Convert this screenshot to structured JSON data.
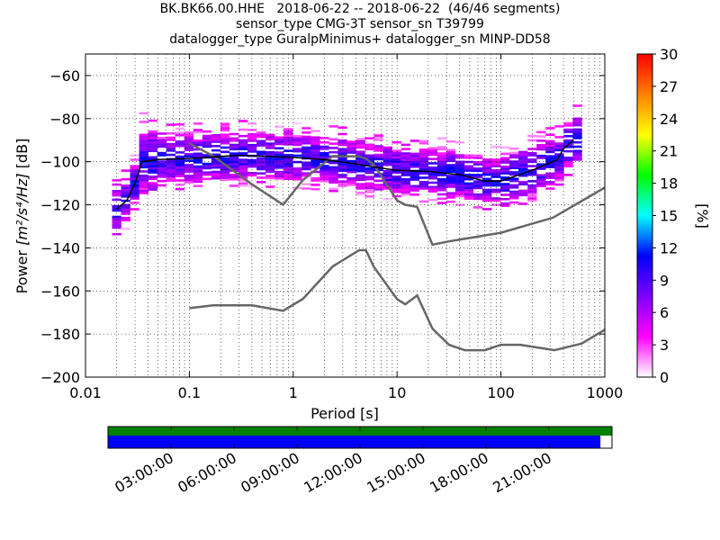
{
  "header": {
    "line1": "BK.BK66.00.HHE   2018-06-22 -- 2018-06-22  (46/46 segments)",
    "line2": "sensor_type CMG-3T sensor_sn T39799",
    "line3": "datalogger_type GuralpMinimus+ datalogger_sn MINP-DD58"
  },
  "chart_data": {
    "type": "heatmap",
    "xlabel": "Period [s]",
    "ylabel_prefix": "Power ",
    "ylabel_units": "[m²/s⁴/Hz]",
    "ylabel_suffix": " [dB]",
    "x_scale": "log",
    "xlim": [
      0.01,
      1000
    ],
    "ylim": [
      -200,
      -50
    ],
    "x_ticks": [
      {
        "v": 0.01,
        "label": "0.01"
      },
      {
        "v": 0.1,
        "label": "0.1"
      },
      {
        "v": 1,
        "label": "1"
      },
      {
        "v": 10,
        "label": "10"
      },
      {
        "v": 100,
        "label": "100"
      },
      {
        "v": 1000,
        "label": "1000"
      }
    ],
    "y_ticks": [
      {
        "v": -60,
        "label": "−60"
      },
      {
        "v": -80,
        "label": "−80"
      },
      {
        "v": -100,
        "label": "−100"
      },
      {
        "v": -120,
        "label": "−120"
      },
      {
        "v": -140,
        "label": "−140"
      },
      {
        "v": -160,
        "label": "−160"
      },
      {
        "v": -180,
        "label": "−180"
      },
      {
        "v": -200,
        "label": "−200"
      }
    ],
    "grid": true,
    "colorbar": {
      "label": "[%]",
      "range": [
        0,
        30
      ],
      "ticks": [
        {
          "v": 0,
          "label": "0"
        },
        {
          "v": 3,
          "label": "3"
        },
        {
          "v": 6,
          "label": "6"
        },
        {
          "v": 9,
          "label": "9"
        },
        {
          "v": 12,
          "label": "12"
        },
        {
          "v": 15,
          "label": "15"
        },
        {
          "v": 18,
          "label": "18"
        },
        {
          "v": 21,
          "label": "21"
        },
        {
          "v": 24,
          "label": "24"
        },
        {
          "v": 27,
          "label": "27"
        },
        {
          "v": 30,
          "label": "30"
        }
      ],
      "stops": [
        "#ffffff",
        "#ff00ff",
        "#7f00ff",
        "#0000ff",
        "#00ffff",
        "#00ff00",
        "#ffff00",
        "#ff8000",
        "#ff0000"
      ]
    },
    "series": [
      {
        "role": "noise_model_high",
        "color": "#666666",
        "points": [
          [
            0.1,
            -91.5
          ],
          [
            0.17,
            -97.4
          ],
          [
            0.4,
            -110.5
          ],
          [
            0.8,
            -120
          ],
          [
            1.24,
            -108.5
          ],
          [
            2.4,
            -97.4
          ],
          [
            4.3,
            -97.6
          ],
          [
            5,
            -98.5
          ],
          [
            6,
            -101.5
          ],
          [
            10,
            -118
          ],
          [
            12,
            -120
          ],
          [
            15.6,
            -121
          ],
          [
            21.9,
            -138.5
          ],
          [
            31.6,
            -137
          ],
          [
            100,
            -133
          ],
          [
            316,
            -126
          ],
          [
            1000,
            -112
          ]
        ]
      },
      {
        "role": "noise_model_low",
        "color": "#666666",
        "points": [
          [
            0.1,
            -168
          ],
          [
            0.17,
            -166.7
          ],
          [
            0.4,
            -166.7
          ],
          [
            0.8,
            -169.2
          ],
          [
            1.24,
            -163.7
          ],
          [
            2.4,
            -148.6
          ],
          [
            4.3,
            -141.1
          ],
          [
            5,
            -141.1
          ],
          [
            6,
            -149
          ],
          [
            10,
            -163.8
          ],
          [
            12,
            -166.2
          ],
          [
            15.6,
            -162.1
          ],
          [
            21.9,
            -177.5
          ],
          [
            31.6,
            -185
          ],
          [
            45,
            -187.5
          ],
          [
            70,
            -187.5
          ],
          [
            100,
            -185
          ],
          [
            154,
            -185
          ],
          [
            328,
            -187.5
          ],
          [
            600,
            -184.4
          ],
          [
            1000,
            -178
          ]
        ]
      },
      {
        "role": "mode",
        "color": "#000000",
        "points": [
          [
            0.02,
            -122
          ],
          [
            0.025,
            -118
          ],
          [
            0.03,
            -110
          ],
          [
            0.035,
            -100
          ],
          [
            0.05,
            -99
          ],
          [
            0.1,
            -98.5
          ],
          [
            0.3,
            -97
          ],
          [
            1,
            -98
          ],
          [
            2,
            -99
          ],
          [
            4,
            -101
          ],
          [
            7,
            -103
          ],
          [
            10,
            -104
          ],
          [
            20,
            -104.5
          ],
          [
            40,
            -106
          ],
          [
            70,
            -109
          ],
          [
            100,
            -109
          ],
          [
            200,
            -104
          ],
          [
            350,
            -99
          ],
          [
            400,
            -94
          ],
          [
            500,
            -90
          ]
        ]
      }
    ],
    "time_axis": {
      "labels": [
        "03:00:00",
        "06:00:00",
        "09:00:00",
        "12:00:00",
        "15:00:00",
        "18:00:00",
        "21:00:00"
      ],
      "hours": [
        3,
        6,
        9,
        12,
        15,
        18,
        21
      ],
      "range_hours": [
        0,
        24
      ],
      "data_coverage_color": "#008000",
      "psd_coverage_color": "#0000ff",
      "data_coverage": [
        0,
        1
      ],
      "psd_coverage": [
        0,
        0.977
      ]
    }
  }
}
